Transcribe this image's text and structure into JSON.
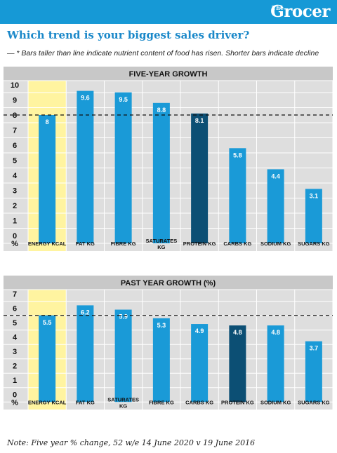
{
  "header": {
    "brand_small": "The",
    "brand": "Grocer"
  },
  "headline": "Which trend is your biggest sales driver?",
  "subtitle": "— * Bars taller than line indicate nutrient content of food has risen. Shorter bars indicate decline",
  "footnote": "Note: Five year % change, 52 w/e 14 June 2020 v 19 June 2016",
  "colors": {
    "bar": "#1a9ad7",
    "highlight_bar": "#0c4f74",
    "highlight_band": "#fff4a0",
    "plot_bg": "#dedede",
    "title_bg": "#c8c8c8",
    "brand": "#1699d6"
  },
  "chart_data": [
    {
      "type": "bar",
      "title": "FIVE-YEAR GROWTH",
      "y_unit_label": "%",
      "ylim": [
        0,
        10
      ],
      "yticks": [
        "0",
        "1",
        "2",
        "3",
        "4",
        "5",
        "6",
        "7",
        "8",
        "9",
        "10"
      ],
      "reference_line": 8,
      "categories": [
        "ENERGY KCAL",
        "FAT KG",
        "FIBRE KG",
        "SATURATES KG",
        "PROTEIN KG",
        "CARBS KG",
        "SODIUM KG",
        "SUGARS KG"
      ],
      "values": [
        8,
        9.6,
        9.5,
        8.8,
        8.1,
        5.8,
        4.4,
        3.1
      ],
      "value_labels": [
        "8",
        "9.6",
        "9.5",
        "8.8",
        "8.1",
        "5.8",
        "4.4",
        "3.1"
      ],
      "highlight_band_index": 0,
      "dark_bar_index": 4,
      "grid": true
    },
    {
      "type": "bar",
      "title": "PAST YEAR GROWTH (%)",
      "y_unit_label": "%",
      "ylim": [
        0,
        7
      ],
      "yticks": [
        "0",
        "1",
        "2",
        "3",
        "4",
        "5",
        "6",
        "7"
      ],
      "reference_line": 5.5,
      "categories": [
        "ENERGY KCAL",
        "FAT KG",
        "SATURATES KG",
        "FIBRE KG",
        "CARBS KG",
        "PROTEIN KG",
        "SODIUM KG",
        "SUGARS KG"
      ],
      "values": [
        5.5,
        6.2,
        5.9,
        5.3,
        4.9,
        4.8,
        4.8,
        3.7
      ],
      "value_labels": [
        "5.5",
        "6.2",
        "5.9",
        "5.3",
        "4.9",
        "4.8",
        "4.8",
        "3.7"
      ],
      "highlight_band_index": 0,
      "dark_bar_index": 5,
      "grid": true
    }
  ]
}
